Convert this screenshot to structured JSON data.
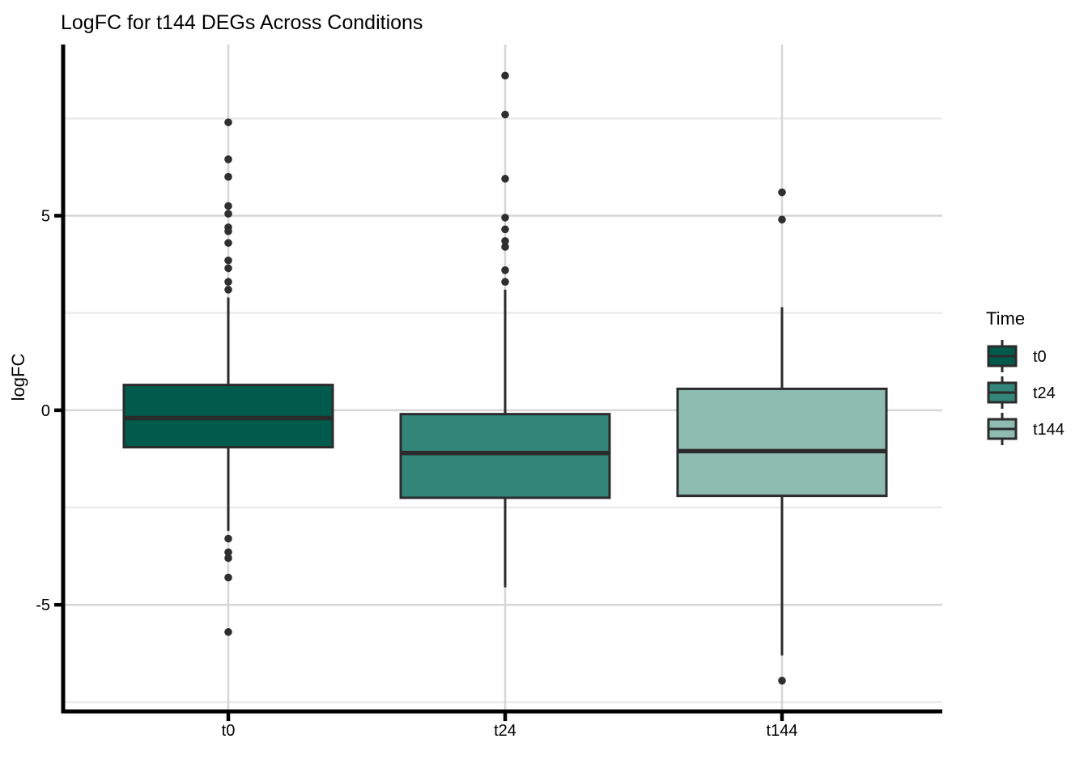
{
  "chart_data": {
    "type": "boxplot",
    "title": "LogFC for t144 DEGs Across Conditions",
    "xlabel": "",
    "ylabel": "logFC",
    "categories": [
      "t0",
      "t24",
      "t144"
    ],
    "y_axis": {
      "ticks": [
        5,
        0,
        -5
      ],
      "minor_gridlines": [
        7.5,
        2.5,
        -2.5,
        -7.5
      ],
      "range": [
        -7.7,
        9.4
      ]
    },
    "grid": "horizontal major+minor, vertical at categories",
    "legend": {
      "title": "Time",
      "position": "right",
      "entries": [
        {
          "label": "t0",
          "fill": "#015B4D"
        },
        {
          "label": "t24",
          "fill": "#338679"
        },
        {
          "label": "t144",
          "fill": "#8FBCB0"
        }
      ]
    },
    "series": [
      {
        "name": "t0",
        "fill": "#015B4D",
        "stats": {
          "whisker_low": -3.1,
          "q1": -0.95,
          "median": -0.2,
          "q3": 0.65,
          "whisker_high": 2.9
        },
        "outliers": [
          7.4,
          6.45,
          6.0,
          5.25,
          5.05,
          4.7,
          4.6,
          4.3,
          3.85,
          3.65,
          3.3,
          3.1,
          -3.3,
          -3.65,
          -3.8,
          -4.3,
          -5.7
        ]
      },
      {
        "name": "t24",
        "fill": "#338679",
        "stats": {
          "whisker_low": -4.55,
          "q1": -2.25,
          "median": -1.1,
          "q3": -0.1,
          "whisker_high": 3.1
        },
        "outliers": [
          8.6,
          7.6,
          5.95,
          4.95,
          4.65,
          4.35,
          4.2,
          3.6,
          3.3
        ]
      },
      {
        "name": "t144",
        "fill": "#8FBCB0",
        "stats": {
          "whisker_low": -6.3,
          "q1": -2.2,
          "median": -1.05,
          "q3": 0.55,
          "whisker_high": 2.65
        },
        "outliers": [
          5.6,
          4.9,
          -6.95
        ]
      }
    ],
    "colors": {
      "box_stroke": "#2B2B2B",
      "outlier": "#2F2F2F",
      "grid_major": "#D6D6D6",
      "grid_minor": "#EBEBEB",
      "axis": "#000000",
      "text": "#000000"
    }
  }
}
